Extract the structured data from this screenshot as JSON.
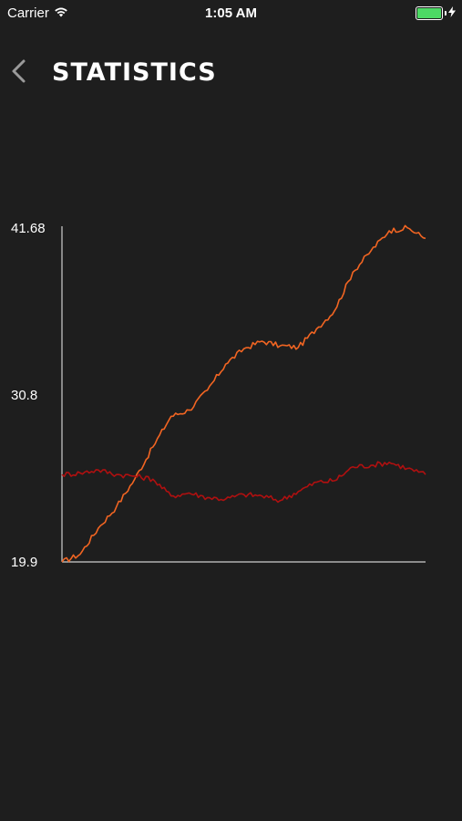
{
  "status_bar": {
    "carrier": "Carrier",
    "time": "1:05 AM",
    "battery_level": 1.0,
    "battery_color": "#4cd964"
  },
  "nav": {
    "back_icon": "chevron-left-icon",
    "title": "STATISTICS"
  },
  "chart_data": {
    "type": "line",
    "title": "",
    "xlabel": "",
    "ylabel": "",
    "ylim": [
      19.9,
      41.68
    ],
    "yticks": [
      "19.9",
      "30.8",
      "41.68"
    ],
    "grid": false,
    "x": [
      0,
      5,
      10,
      15,
      20,
      25,
      30,
      35,
      40,
      45,
      50,
      55,
      60,
      65,
      70,
      75,
      80,
      85,
      90,
      95,
      100
    ],
    "series": [
      {
        "color": "#f26522",
        "values": [
          19.9,
          20.4,
          22.1,
          23.5,
          25.3,
          27.4,
          29.4,
          29.8,
          31.1,
          32.8,
          33.8,
          34.3,
          34.0,
          33.9,
          35.1,
          36.3,
          38.8,
          40.2,
          41.5,
          41.7,
          41.0
        ]
      },
      {
        "color": "#b01010",
        "values": [
          25.6,
          25.7,
          25.9,
          25.6,
          25.5,
          25.3,
          24.2,
          24.4,
          24.1,
          24.0,
          24.3,
          24.2,
          23.9,
          24.5,
          25.1,
          25.2,
          26.1,
          26.2,
          26.4,
          26.0,
          25.6
        ]
      }
    ]
  }
}
